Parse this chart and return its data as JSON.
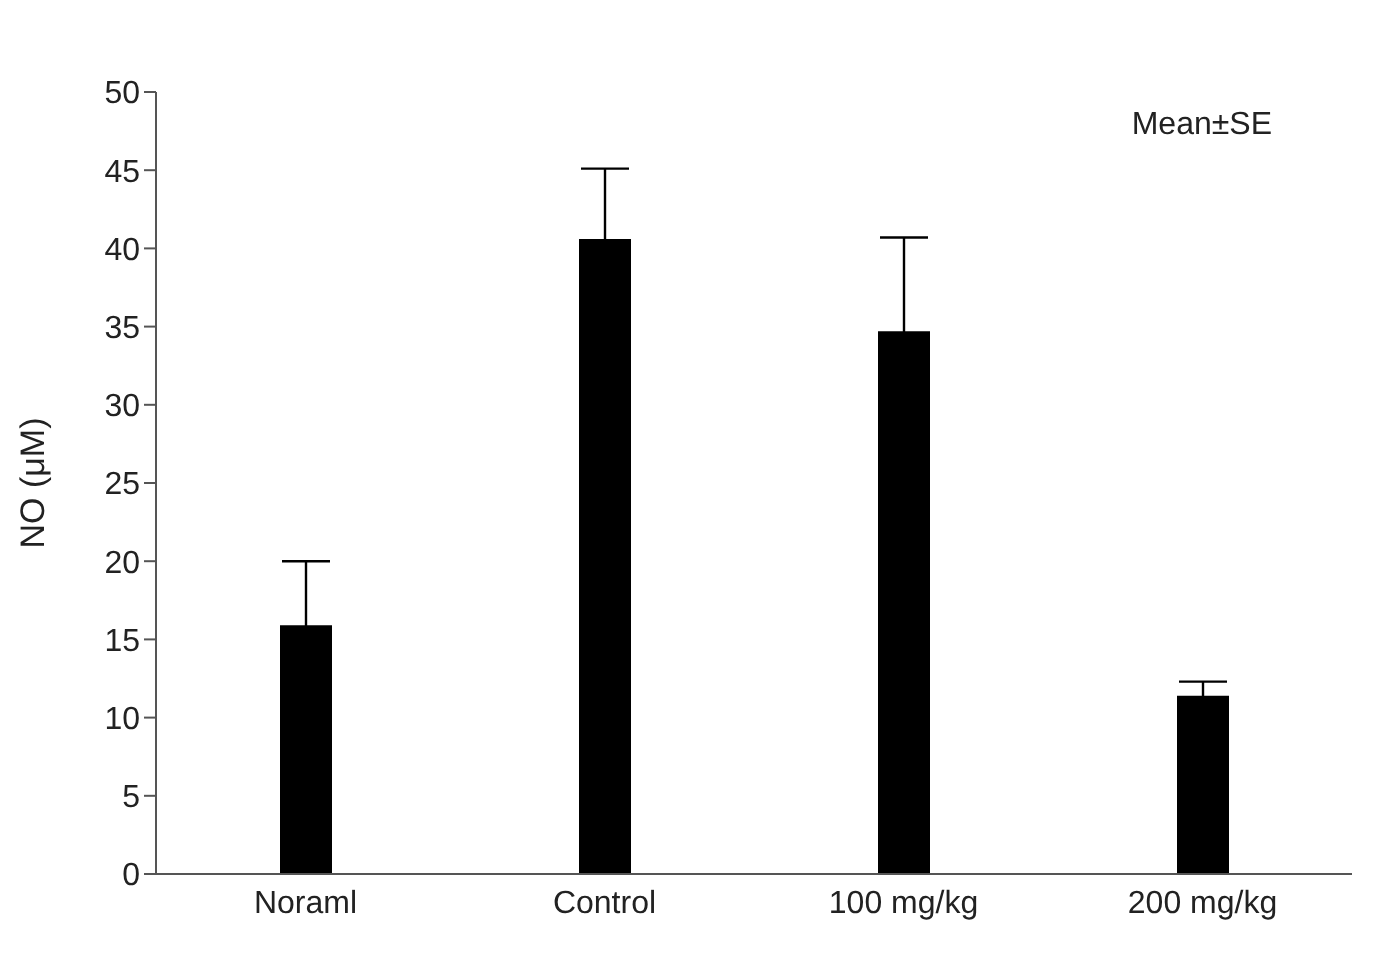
{
  "chart_data": {
    "type": "bar",
    "ylabel": "NO (μM)",
    "categories": [
      "Noraml",
      "Control",
      "100 mg/kg",
      "200 mg/kg"
    ],
    "values": [
      15.9,
      40.6,
      34.7,
      11.4
    ],
    "errors": [
      4.1,
      4.5,
      6.0,
      0.9
    ],
    "color": "#000000",
    "ylim": [
      0,
      50
    ],
    "yticks": [
      0,
      5,
      10,
      15,
      20,
      25,
      30,
      35,
      40,
      45,
      50
    ],
    "grid": false,
    "annotations": [
      "Mean±SE"
    ]
  }
}
